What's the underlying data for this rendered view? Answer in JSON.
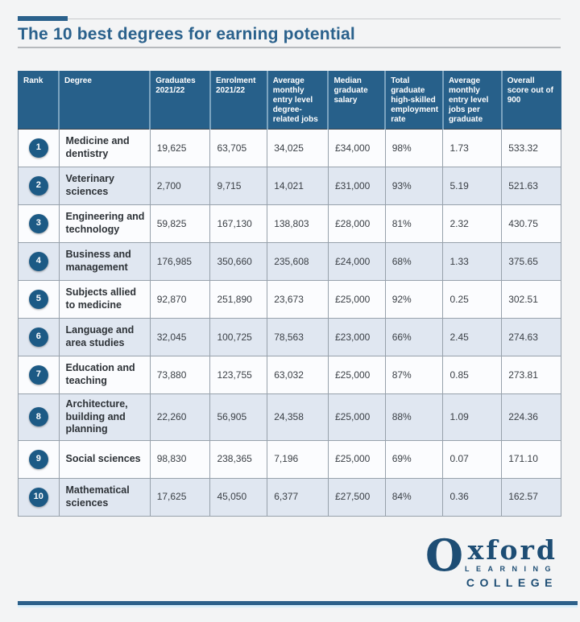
{
  "page": {
    "title": "The 10 best degrees for earning potential"
  },
  "colors": {
    "accent_blue": "#2a618c",
    "table_header_blue": "#27608a",
    "rank_badge_blue": "#1c5a85",
    "row_even_tint": "#e0e7f1",
    "row_odd": "#fbfcfe",
    "title_blue": "#2a618c",
    "logo_blue": "#1d4d74",
    "footer_bar_blue": "#2c608a",
    "footer_glow": "#d8eefb",
    "page_background": "#f3f4f5"
  },
  "chart_data": {
    "type": "table",
    "title": "The 10 best degrees for earning potential",
    "columns": [
      "Rank",
      "Degree",
      "Graduates 2021/22",
      "Enrolment 2021/22",
      "Average monthly entry level degree-related jobs",
      "Median graduate salary",
      "Total graduate high-skilled employment rate",
      "Average monthly entry level jobs per graduate",
      "Overall score out of 900"
    ],
    "rows": [
      [
        "1",
        "Medicine and dentistry",
        "19,625",
        "63,705",
        "34,025",
        "£34,000",
        "98%",
        "1.73",
        "533.32"
      ],
      [
        "2",
        "Veterinary sciences",
        "2,700",
        "9,715",
        "14,021",
        "£31,000",
        "93%",
        "5.19",
        "521.63"
      ],
      [
        "3",
        "Engineering and technology",
        "59,825",
        "167,130",
        "138,803",
        "£28,000",
        "81%",
        "2.32",
        "430.75"
      ],
      [
        "4",
        "Business and management",
        "176,985",
        "350,660",
        "235,608",
        "£24,000",
        "68%",
        "1.33",
        "375.65"
      ],
      [
        "5",
        "Subjects allied to medicine",
        "92,870",
        "251,890",
        "23,673",
        "£25,000",
        "92%",
        "0.25",
        "302.51"
      ],
      [
        "6",
        "Language and area studies",
        "32,045",
        "100,725",
        "78,563",
        "£23,000",
        "66%",
        "2.45",
        "274.63"
      ],
      [
        "7",
        "Education and teaching",
        "73,880",
        "123,755",
        "63,032",
        "£25,000",
        "87%",
        "0.85",
        "273.81"
      ],
      [
        "8",
        "Architecture, building and planning",
        "22,260",
        "56,905",
        "24,358",
        "£25,000",
        "88%",
        "1.09",
        "224.36"
      ],
      [
        "9",
        "Social sciences",
        "98,830",
        "238,365",
        "7,196",
        "£25,000",
        "69%",
        "0.07",
        "171.10"
      ],
      [
        "10",
        "Mathematical sciences",
        "17,625",
        "45,050",
        "6,377",
        "£27,500",
        "84%",
        "0.36",
        "162.57"
      ]
    ]
  },
  "logo": {
    "initial": "O",
    "rest": "xford",
    "line1": "LEARNING",
    "line2": "COLLEGE"
  }
}
